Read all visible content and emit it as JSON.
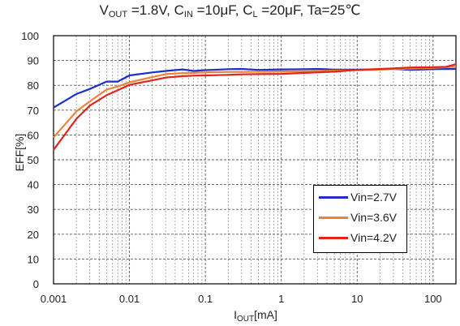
{
  "chart_data": {
    "type": "line",
    "title_parts": {
      "v": "V",
      "v_sub": "OUT",
      "v_val": " =1.8V, C",
      "cin_sub": "IN",
      "cin_val": " =10μF, C",
      "cl_sub": "L",
      "cl_val": " =20μF, Ta=25℃"
    },
    "xlabel_main": "I",
    "xlabel_sub": "OUT",
    "xlabel_unit": "[mA]",
    "ylabel": "EFF[%]",
    "xscale": "log",
    "xlim": [
      0.001,
      200
    ],
    "ylim": [
      0,
      100
    ],
    "xticks": [
      0.001,
      0.01,
      0.1,
      1,
      10,
      100
    ],
    "xtick_labels": [
      "0.001",
      "0.01",
      "0.1",
      "1",
      "10",
      "100"
    ],
    "yticks": [
      0,
      10,
      20,
      30,
      40,
      50,
      60,
      70,
      80,
      90,
      100
    ],
    "ytick_labels": [
      "0",
      "10",
      "20",
      "30",
      "40",
      "50",
      "60",
      "70",
      "80",
      "90",
      "100"
    ],
    "grid": true,
    "legend_position": "lower-right",
    "series": [
      {
        "name": "Vin=2.7V",
        "color": "#1c2fc8",
        "x": [
          0.001,
          0.002,
          0.003,
          0.005,
          0.007,
          0.01,
          0.02,
          0.03,
          0.05,
          0.07,
          0.1,
          0.2,
          0.3,
          0.5,
          1,
          2,
          3,
          5,
          10,
          20,
          30,
          50,
          100,
          200
        ],
        "y": [
          71,
          76.5,
          78.5,
          81.5,
          81.5,
          84,
          85.2,
          85.8,
          86.4,
          85.8,
          86.1,
          86.5,
          86.6,
          86.2,
          86.4,
          86.5,
          86.6,
          86.3,
          86.3,
          86.4,
          86.6,
          86.2,
          86.5,
          86.6
        ]
      },
      {
        "name": "Vin=3.6V",
        "color": "#e8843a",
        "x": [
          0.001,
          0.002,
          0.003,
          0.005,
          0.007,
          0.01,
          0.02,
          0.03,
          0.05,
          0.07,
          0.1,
          0.2,
          0.3,
          0.5,
          1,
          2,
          3,
          5,
          10,
          20,
          30,
          50,
          100,
          200
        ],
        "y": [
          59,
          69.5,
          73.5,
          78.3,
          79.5,
          81.2,
          83.3,
          84.5,
          84.9,
          85,
          85.2,
          85.4,
          85.4,
          85.5,
          85.6,
          85.7,
          85.8,
          85.9,
          86.1,
          86.3,
          86.5,
          86.7,
          87,
          87.5
        ]
      },
      {
        "name": "Vin=4.2V",
        "color": "#e0241c",
        "x": [
          0.001,
          0.002,
          0.003,
          0.005,
          0.007,
          0.01,
          0.02,
          0.03,
          0.05,
          0.07,
          0.1,
          0.2,
          0.3,
          0.5,
          1,
          2,
          3,
          5,
          10,
          20,
          30,
          50,
          100,
          150,
          200
        ],
        "y": [
          54,
          66.5,
          71.8,
          76,
          78,
          80.2,
          82,
          83.1,
          83.7,
          83.9,
          84,
          84.2,
          84.4,
          84.5,
          84.6,
          85,
          85.2,
          85.5,
          86.2,
          86.6,
          86.8,
          87.2,
          87.3,
          87.5,
          88.5
        ]
      }
    ]
  }
}
